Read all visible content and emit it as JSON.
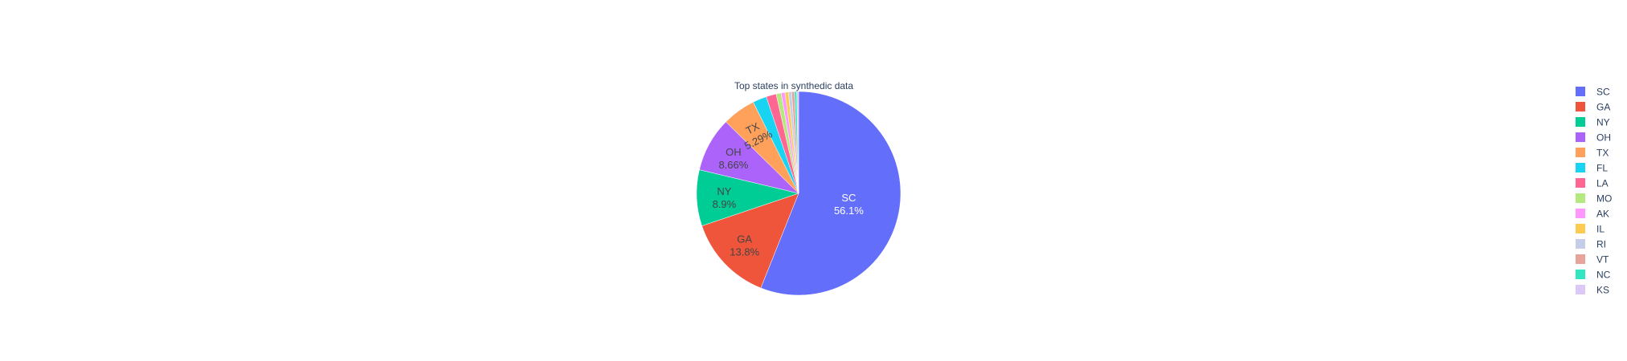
{
  "chart_data": {
    "type": "pie",
    "title": "Top states in synthedic data",
    "slices": [
      {
        "label": "SC",
        "value": 56.1,
        "text": "56.1%",
        "color": "#636efa",
        "text_color": "#ffffff",
        "show_text": true
      },
      {
        "label": "GA",
        "value": 13.8,
        "text": "13.8%",
        "color": "#EF553B",
        "text_color": "#444444",
        "show_text": true
      },
      {
        "label": "NY",
        "value": 8.9,
        "text": "8.9%",
        "color": "#00cc96",
        "text_color": "#444444",
        "show_text": true
      },
      {
        "label": "OH",
        "value": 8.66,
        "text": "8.66%",
        "color": "#ab63fa",
        "text_color": "#444444",
        "show_text": true
      },
      {
        "label": "TX",
        "value": 5.29,
        "text": "5.29%",
        "color": "#FFA15A",
        "text_color": "#444444",
        "show_text": true
      },
      {
        "label": "FL",
        "value": 2.2,
        "text": "",
        "color": "#19d3f3",
        "text_color": "#444444",
        "show_text": false
      },
      {
        "label": "LA",
        "value": 1.6,
        "text": "",
        "color": "#FF6692",
        "text_color": "#444444",
        "show_text": false
      },
      {
        "label": "MO",
        "value": 0.8,
        "text": "",
        "color": "#B6E880",
        "text_color": "#444444",
        "show_text": false
      },
      {
        "label": "AK",
        "value": 0.6,
        "text": "",
        "color": "#FF97FF",
        "text_color": "#444444",
        "show_text": false
      },
      {
        "label": "IL",
        "value": 0.55,
        "text": "",
        "color": "#FECB52",
        "text_color": "#444444",
        "show_text": false
      },
      {
        "label": "RI",
        "value": 0.5,
        "text": "",
        "color": "#c6cde8",
        "text_color": "#444444",
        "show_text": false
      },
      {
        "label": "VT",
        "value": 0.45,
        "text": "",
        "color": "#e8a49a",
        "text_color": "#444444",
        "show_text": false
      },
      {
        "label": "NC",
        "value": 0.35,
        "text": "",
        "color": "#33e6c2",
        "text_color": "#444444",
        "show_text": false
      },
      {
        "label": "KS",
        "value": 0.3,
        "text": "",
        "color": "#dcc8f6",
        "text_color": "#444444",
        "show_text": false
      }
    ],
    "legend_placement": "right",
    "rotation": "clockwise-from-top"
  }
}
